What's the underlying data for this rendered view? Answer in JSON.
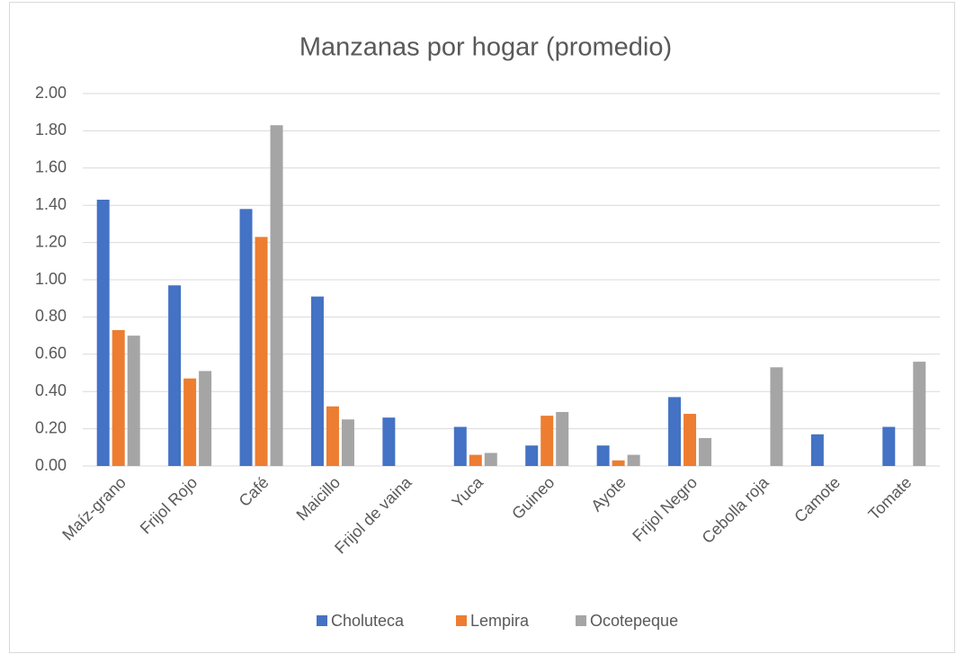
{
  "chart_data": {
    "type": "bar",
    "title": "Manzanas por hogar (promedio)",
    "categories": [
      "Maíz-grano",
      "Frijol Rojo",
      "Café",
      "Maicillo",
      "Frijol de vaina",
      "Yuca",
      "Guineo",
      "Ayote",
      "Frijol Negro",
      "Cebolla roja",
      "Camote",
      "Tomate"
    ],
    "series": [
      {
        "name": "Choluteca",
        "color": "#4472c4",
        "values": [
          1.43,
          0.97,
          1.38,
          0.91,
          0.26,
          0.21,
          0.11,
          0.11,
          0.37,
          null,
          0.17,
          0.21
        ]
      },
      {
        "name": "Lempira",
        "color": "#ed7d31",
        "values": [
          0.73,
          0.47,
          1.23,
          0.32,
          null,
          0.06,
          0.27,
          0.03,
          0.28,
          null,
          null,
          null
        ]
      },
      {
        "name": "Ocotepeque",
        "color": "#a5a5a5",
        "values": [
          0.7,
          0.51,
          1.83,
          0.25,
          null,
          0.07,
          0.29,
          0.06,
          0.15,
          0.53,
          null,
          0.56
        ]
      }
    ],
    "ylim": [
      0,
      2
    ],
    "yticks": [
      {
        "value": 0,
        "label": "0.00"
      },
      {
        "value": 0.2,
        "label": "0.20"
      },
      {
        "value": 0.4,
        "label": "0.40"
      },
      {
        "value": 0.6,
        "label": "0.60"
      },
      {
        "value": 0.8,
        "label": "0.80"
      },
      {
        "value": 1,
        "label": "1.00"
      },
      {
        "value": 1.2,
        "label": "1.20"
      },
      {
        "value": 1.4,
        "label": "1.40"
      },
      {
        "value": 1.6,
        "label": "1.60"
      },
      {
        "value": 1.8,
        "label": "1.80"
      },
      {
        "value": 2,
        "label": "2.00"
      }
    ],
    "grid": true,
    "legend": "bottom"
  }
}
